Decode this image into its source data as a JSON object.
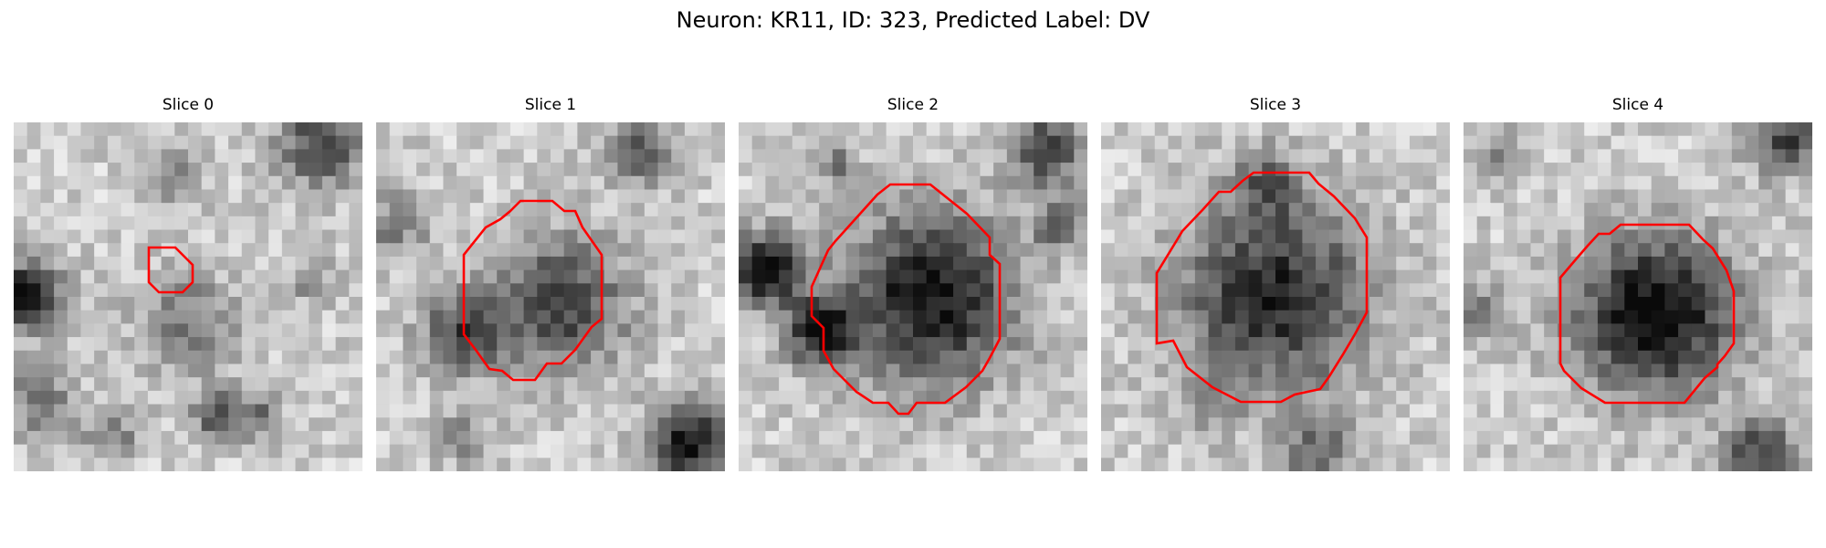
{
  "figure": {
    "title": "Neuron: KR11, ID: 323, Predicted Label: DV"
  },
  "outline_color": "#ff0000",
  "panels": [
    {
      "title": "Slice 0",
      "contour": "small"
    },
    {
      "title": "Slice 1",
      "contour": "large"
    },
    {
      "title": "Slice 2",
      "contour": "large"
    },
    {
      "title": "Slice 3",
      "contour": "large"
    },
    {
      "title": "Slice 4",
      "contour": "large"
    }
  ]
}
